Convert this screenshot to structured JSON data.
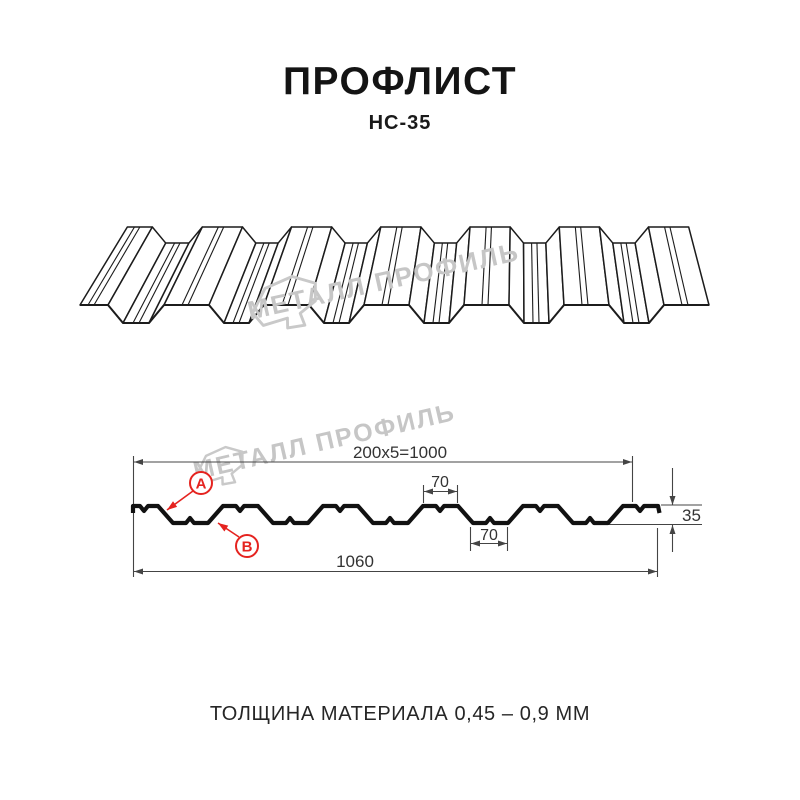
{
  "header": {
    "title": "ПРОФЛИСТ",
    "subtitle": "НС-35"
  },
  "watermark": {
    "text": "МЕТАЛЛ ПРОФИЛЬ",
    "logo": "metall-profil-logo"
  },
  "section": {
    "dim_coverage_width": "200x5=1000",
    "dim_rib_top": "70",
    "dim_rib_bottom": "70",
    "dim_height": "35",
    "dim_overall_width": "1060",
    "marker_a": "А",
    "marker_b": "В"
  },
  "footer": {
    "note": "ТОЛЩИНА МАТЕРИАЛА 0,45 – 0,9 ММ"
  },
  "colors": {
    "accent_red": "#e5231f",
    "line_dark": "#1a1a1a",
    "dim_line": "#444444",
    "watermark_gray": "#c6c6c6"
  }
}
